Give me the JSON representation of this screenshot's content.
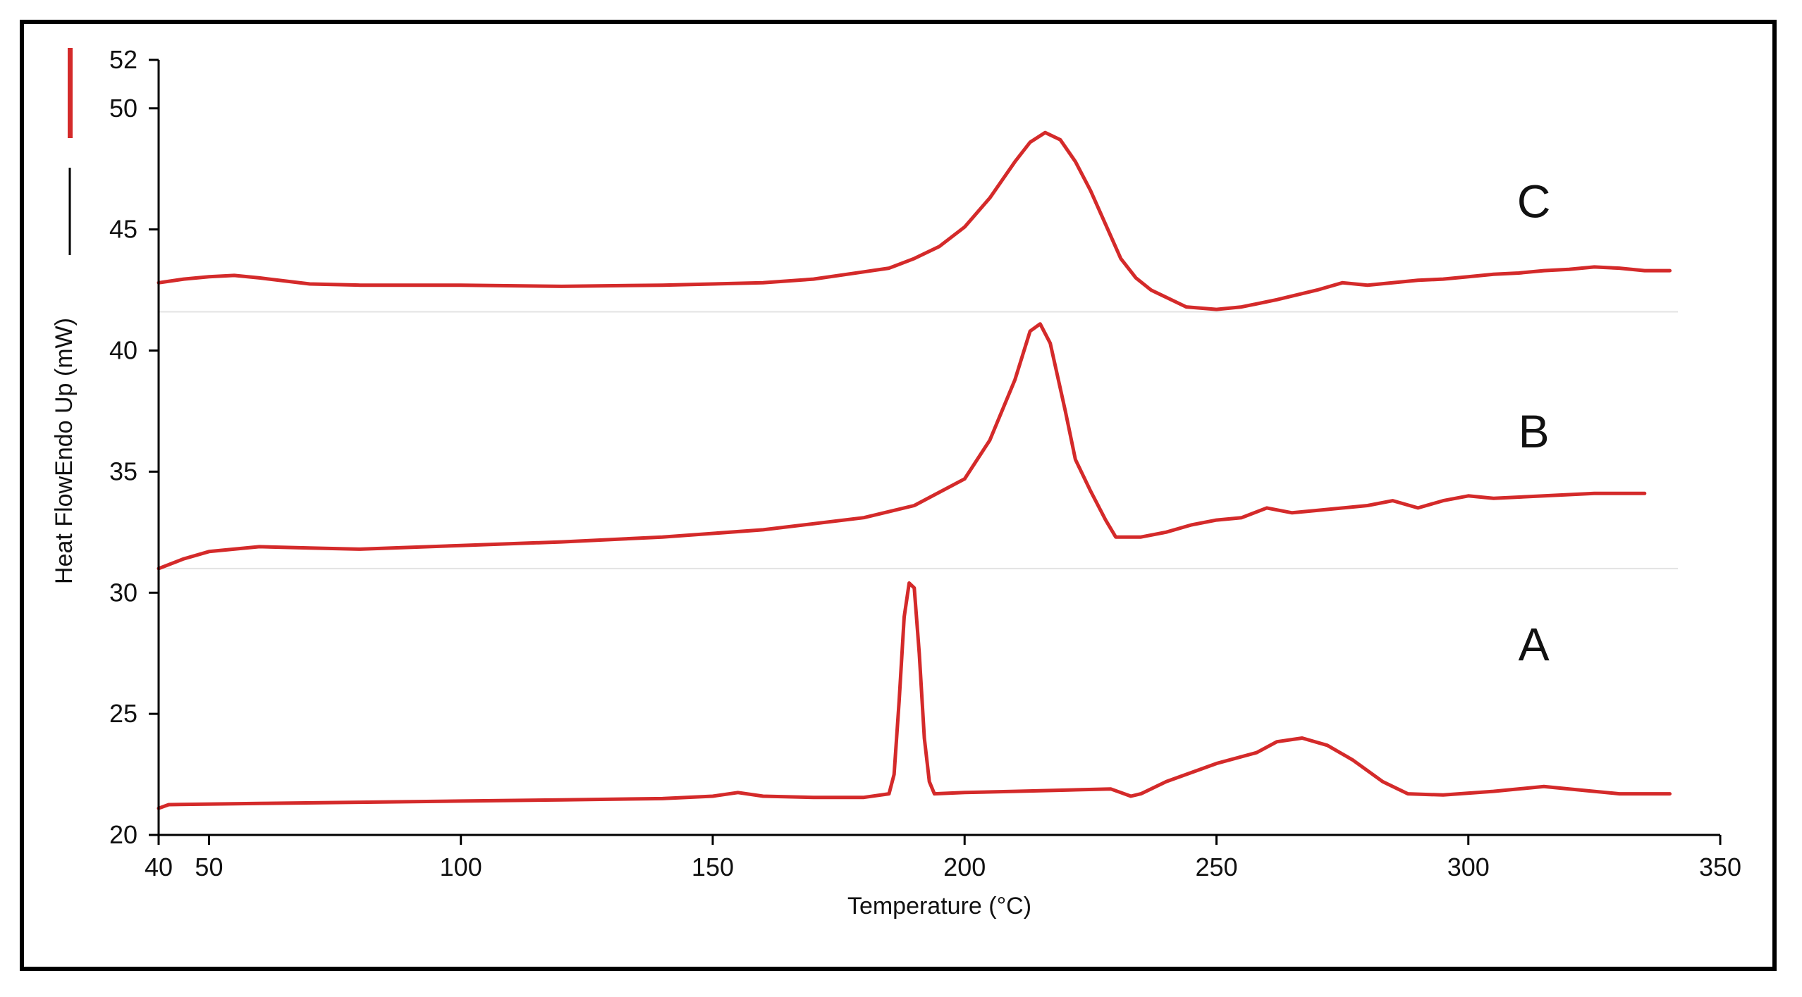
{
  "chart_data": {
    "type": "line",
    "title": "",
    "xlabel": "Temperature (°C)",
    "ylabel": "Heat FlowEndo Up (mW)",
    "xlim": [
      40,
      350
    ],
    "ylim": [
      20,
      52
    ],
    "x_ticks": [
      {
        "value": 40,
        "label": "40"
      },
      {
        "value": 50,
        "label": "50"
      },
      {
        "value": 100,
        "label": "100"
      },
      {
        "value": 150,
        "label": "150"
      },
      {
        "value": 200,
        "label": "200"
      },
      {
        "value": 250,
        "label": "250"
      },
      {
        "value": 300,
        "label": "300"
      },
      {
        "value": 350,
        "label": "350"
      }
    ],
    "y_ticks": [
      {
        "value": 20,
        "label": "20"
      },
      {
        "value": 25,
        "label": "25"
      },
      {
        "value": 30,
        "label": "30"
      },
      {
        "value": 35,
        "label": "35"
      },
      {
        "value": 40,
        "label": "40"
      },
      {
        "value": 45,
        "label": "45"
      },
      {
        "value": 50,
        "label": "50"
      },
      {
        "value": 52,
        "label": "52"
      }
    ],
    "grid": false,
    "line_color": "#d42a2a",
    "baseline_color": "#e3e3e3",
    "baselines": [
      41.6,
      31.0
    ],
    "series": [
      {
        "name": "A",
        "label_position": {
          "x": 313,
          "y": 27.2
        },
        "points": [
          [
            40,
            21.1
          ],
          [
            42,
            21.25
          ],
          [
            60,
            21.3
          ],
          [
            80,
            21.35
          ],
          [
            100,
            21.4
          ],
          [
            120,
            21.45
          ],
          [
            140,
            21.5
          ],
          [
            150,
            21.6
          ],
          [
            155,
            21.75
          ],
          [
            160,
            21.6
          ],
          [
            170,
            21.55
          ],
          [
            180,
            21.55
          ],
          [
            185,
            21.7
          ],
          [
            186,
            22.5
          ],
          [
            187,
            25.5
          ],
          [
            188,
            29.0
          ],
          [
            189,
            30.4
          ],
          [
            190,
            30.2
          ],
          [
            191,
            27.5
          ],
          [
            192,
            24.0
          ],
          [
            193,
            22.2
          ],
          [
            194,
            21.7
          ],
          [
            200,
            21.75
          ],
          [
            210,
            21.8
          ],
          [
            220,
            21.85
          ],
          [
            229,
            21.9
          ],
          [
            231,
            21.75
          ],
          [
            233,
            21.6
          ],
          [
            235,
            21.7
          ],
          [
            240,
            22.2
          ],
          [
            250,
            22.95
          ],
          [
            258,
            23.4
          ],
          [
            262,
            23.85
          ],
          [
            267,
            24.0
          ],
          [
            272,
            23.7
          ],
          [
            277,
            23.1
          ],
          [
            283,
            22.2
          ],
          [
            288,
            21.7
          ],
          [
            295,
            21.65
          ],
          [
            305,
            21.8
          ],
          [
            315,
            22.0
          ],
          [
            320,
            21.9
          ],
          [
            330,
            21.7
          ],
          [
            340,
            21.7
          ]
        ]
      },
      {
        "name": "B",
        "label_position": {
          "x": 313,
          "y": 36.0
        },
        "points": [
          [
            40,
            31.0
          ],
          [
            45,
            31.4
          ],
          [
            50,
            31.7
          ],
          [
            60,
            31.9
          ],
          [
            70,
            31.85
          ],
          [
            80,
            31.8
          ],
          [
            100,
            31.95
          ],
          [
            120,
            32.1
          ],
          [
            140,
            32.3
          ],
          [
            160,
            32.6
          ],
          [
            180,
            33.1
          ],
          [
            190,
            33.6
          ],
          [
            200,
            34.7
          ],
          [
            205,
            36.3
          ],
          [
            210,
            38.8
          ],
          [
            213,
            40.8
          ],
          [
            215,
            41.1
          ],
          [
            217,
            40.3
          ],
          [
            220,
            37.5
          ],
          [
            222,
            35.5
          ],
          [
            225,
            34.2
          ],
          [
            228,
            33.0
          ],
          [
            230,
            32.3
          ],
          [
            235,
            32.3
          ],
          [
            240,
            32.5
          ],
          [
            245,
            32.8
          ],
          [
            250,
            33.0
          ],
          [
            255,
            33.1
          ],
          [
            260,
            33.5
          ],
          [
            265,
            33.3
          ],
          [
            270,
            33.4
          ],
          [
            280,
            33.6
          ],
          [
            285,
            33.8
          ],
          [
            290,
            33.5
          ],
          [
            295,
            33.8
          ],
          [
            300,
            34.0
          ],
          [
            305,
            33.9
          ],
          [
            315,
            34.0
          ],
          [
            325,
            34.1
          ],
          [
            335,
            34.1
          ]
        ]
      },
      {
        "name": "C",
        "label_position": {
          "x": 313,
          "y": 45.5
        },
        "points": [
          [
            40,
            42.8
          ],
          [
            45,
            42.95
          ],
          [
            50,
            43.05
          ],
          [
            55,
            43.1
          ],
          [
            60,
            43.0
          ],
          [
            70,
            42.75
          ],
          [
            80,
            42.7
          ],
          [
            100,
            42.7
          ],
          [
            120,
            42.65
          ],
          [
            140,
            42.7
          ],
          [
            160,
            42.8
          ],
          [
            170,
            42.95
          ],
          [
            180,
            43.25
          ],
          [
            185,
            43.4
          ],
          [
            190,
            43.8
          ],
          [
            195,
            44.3
          ],
          [
            200,
            45.1
          ],
          [
            205,
            46.3
          ],
          [
            210,
            47.8
          ],
          [
            213,
            48.6
          ],
          [
            216,
            49.0
          ],
          [
            219,
            48.7
          ],
          [
            222,
            47.8
          ],
          [
            225,
            46.6
          ],
          [
            228,
            45.2
          ],
          [
            231,
            43.8
          ],
          [
            234,
            43.0
          ],
          [
            237,
            42.5
          ],
          [
            240,
            42.2
          ],
          [
            244,
            41.8
          ],
          [
            250,
            41.7
          ],
          [
            255,
            41.8
          ],
          [
            262,
            42.1
          ],
          [
            270,
            42.5
          ],
          [
            275,
            42.8
          ],
          [
            280,
            42.7
          ],
          [
            290,
            42.9
          ],
          [
            295,
            42.95
          ],
          [
            300,
            43.05
          ],
          [
            305,
            43.15
          ],
          [
            310,
            43.2
          ],
          [
            315,
            43.3
          ],
          [
            320,
            43.35
          ],
          [
            325,
            43.45
          ],
          [
            330,
            43.4
          ],
          [
            335,
            43.3
          ],
          [
            340,
            43.3
          ]
        ]
      }
    ]
  }
}
